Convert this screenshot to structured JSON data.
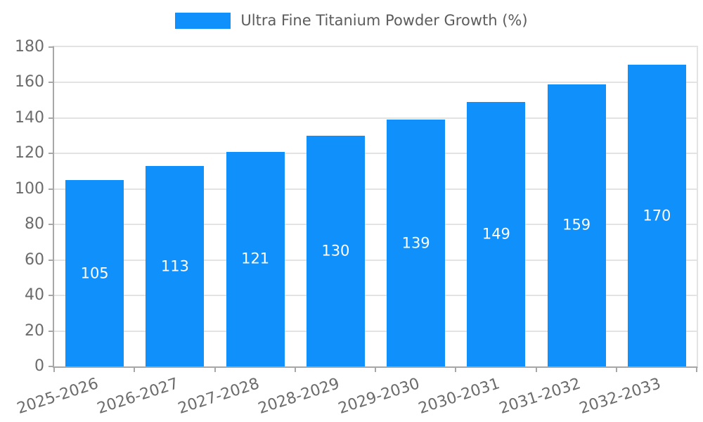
{
  "legend": {
    "label": "Ultra Fine Titanium Powder Growth (%)"
  },
  "colors": {
    "bar": "#0f90fa",
    "axis_line": "#a7a7a7",
    "grid_line": "#e3e3e3",
    "axis_label": "#6b6b6b",
    "legend_text": "#5c5c5c",
    "bar_label": "#ffffff",
    "background": "#ffffff"
  },
  "chart_data": {
    "type": "bar",
    "title": "Ultra Fine Titanium Powder Growth (%)",
    "categories": [
      "2025-2026",
      "2026-2027",
      "2027-2028",
      "2028-2029",
      "2029-2030",
      "2030-2031",
      "2031-2032",
      "2032-2033"
    ],
    "values": [
      105,
      113,
      121,
      130,
      139,
      149,
      159,
      170
    ],
    "xlabel": "",
    "ylabel": "",
    "ylim": [
      0,
      180
    ],
    "yticks": [
      0,
      20,
      40,
      60,
      80,
      100,
      120,
      140,
      160,
      180
    ],
    "grid": true,
    "legend_position": "top-center",
    "bar_label_position": "inside-center",
    "x_label_rotation_deg": -18
  }
}
